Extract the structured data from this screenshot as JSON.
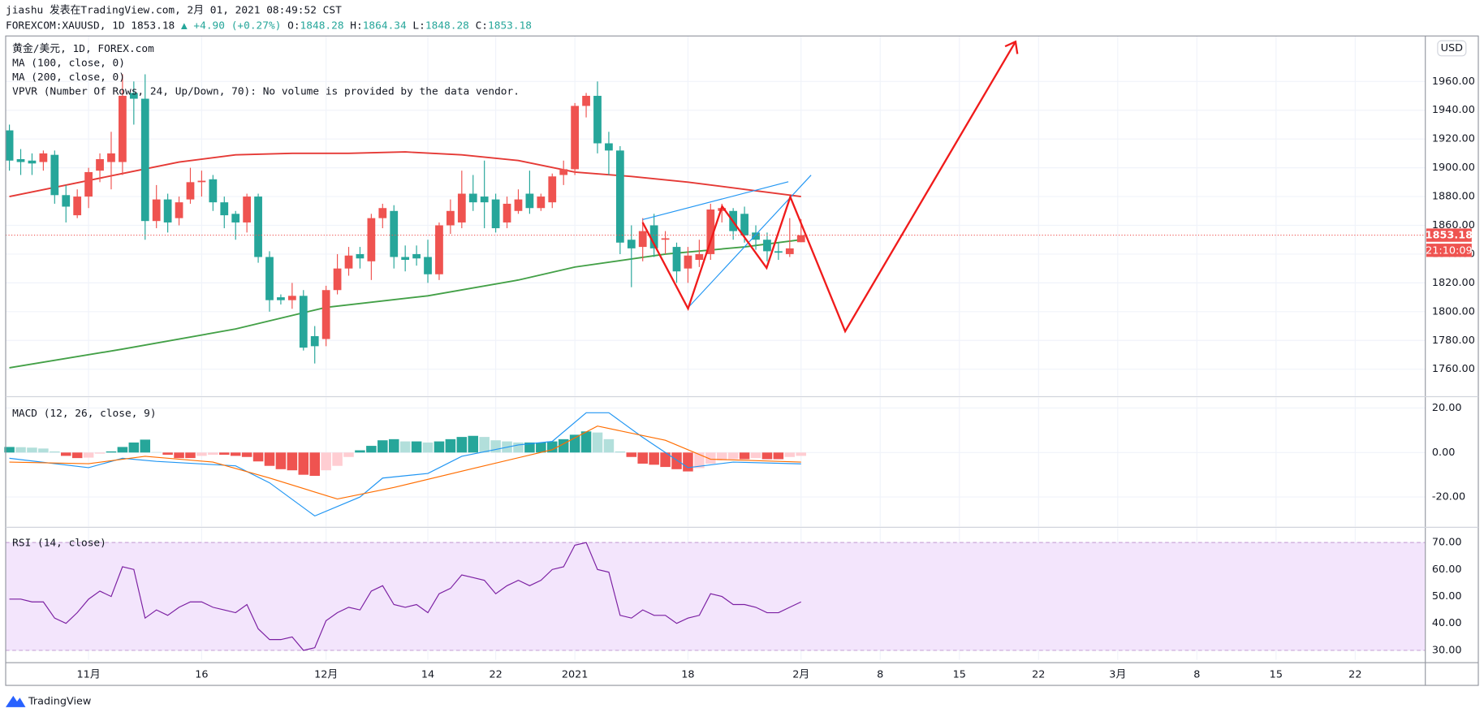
{
  "header": {
    "author_line": "jiashu 发表在TradingView.com, 2月 01, 2021 08:49:52 CST",
    "symbol": "FOREXCOM:XAUUSD, 1D",
    "change": "▲ +4.90 (+0.27%)",
    "ohlc_labels": [
      "O:",
      "H:",
      "L:",
      "C:"
    ],
    "brand": "TradingView"
  },
  "chart_data": [
    {
      "type": "candlestick",
      "title": "黄金/美元, 1D, FOREX.com",
      "currency": "USD",
      "countdown": "21:10:09",
      "notes": [
        "VPVR (Number Of Rows, 24, Up/Down, 70): No volume is provided by the data vendor."
      ],
      "up_color": "#ef5350",
      "down_color": "#26a69a",
      "grid": true,
      "xlim": [
        -0.33,
        125.2
      ],
      "xticks": [
        {
          "value": 7,
          "label": "11月"
        },
        {
          "value": 17,
          "label": "16"
        },
        {
          "value": 28,
          "label": "12月"
        },
        {
          "value": 37,
          "label": "14"
        },
        {
          "value": 43,
          "label": "22"
        },
        {
          "value": 50,
          "label": "2021"
        },
        {
          "value": 60,
          "label": "18"
        },
        {
          "value": 70,
          "label": "2月"
        },
        {
          "value": 77,
          "label": "8"
        },
        {
          "value": 84,
          "label": "15"
        },
        {
          "value": 91,
          "label": "22"
        },
        {
          "value": 98,
          "label": "3月"
        },
        {
          "value": 105,
          "label": "8"
        },
        {
          "value": 112,
          "label": "15"
        },
        {
          "value": 119,
          "label": "22"
        }
      ],
      "ylim": [
        1741.6,
        1991.6
      ],
      "yticks": [
        {
          "value": 1760,
          "label": "1760.00"
        },
        {
          "value": 1780,
          "label": "1780.00"
        },
        {
          "value": 1800,
          "label": "1800.00"
        },
        {
          "value": 1820,
          "label": "1820.00"
        },
        {
          "value": 1840,
          "label": "1840.00"
        },
        {
          "value": 1860,
          "label": "1860.00"
        },
        {
          "value": 1880,
          "label": "1880.00"
        },
        {
          "value": 1900,
          "label": "1900.00"
        },
        {
          "value": 1920,
          "label": "1920.00"
        },
        {
          "value": 1940,
          "label": "1940.00"
        },
        {
          "value": 1960,
          "label": "1960.00"
        }
      ],
      "open": [
        1926,
        1906,
        1905,
        1904,
        1909,
        1881,
        1867,
        1880,
        1898,
        1904,
        1904,
        1952,
        1948,
        1863,
        1878,
        1865,
        1878,
        1890,
        1892,
        1876,
        1868,
        1862,
        1880,
        1838,
        1810,
        1808,
        1811,
        1783,
        1781,
        1815,
        1830,
        1840,
        1835,
        1865,
        1870,
        1838,
        1840,
        1838,
        1826,
        1860,
        1862,
        1882,
        1880,
        1878,
        1862,
        1870,
        1882,
        1872,
        1876,
        1895,
        1899,
        1943,
        1950,
        1917,
        1912,
        1850,
        1845,
        1860,
        1850,
        1845,
        1830,
        1836,
        1840,
        1870,
        1870,
        1868,
        1855,
        1850,
        1842,
        1840,
        1848.28
      ],
      "high": [
        1930,
        1913,
        1910,
        1912,
        1912,
        1888,
        1885,
        1900,
        1910,
        1925,
        1965,
        1960,
        1965,
        1888,
        1882,
        1880,
        1900,
        1898,
        1895,
        1880,
        1870,
        1882,
        1882,
        1842,
        1812,
        1820,
        1815,
        1790,
        1818,
        1840,
        1845,
        1845,
        1868,
        1875,
        1874,
        1846,
        1846,
        1850,
        1862,
        1878,
        1898,
        1895,
        1905,
        1882,
        1880,
        1885,
        1898,
        1882,
        1896,
        1905,
        1945,
        1952,
        1960,
        1925,
        1915,
        1860,
        1865,
        1868,
        1856,
        1848,
        1845,
        1850,
        1875,
        1875,
        1872,
        1873,
        1860,
        1855,
        1848,
        1865,
        1864.34
      ],
      "low": [
        1898,
        1895,
        1895,
        1898,
        1875,
        1862,
        1865,
        1872,
        1890,
        1885,
        1895,
        1930,
        1850,
        1858,
        1855,
        1860,
        1875,
        1880,
        1870,
        1858,
        1850,
        1855,
        1834,
        1800,
        1805,
        1802,
        1773,
        1764,
        1776,
        1812,
        1825,
        1830,
        1822,
        1858,
        1830,
        1828,
        1832,
        1820,
        1822,
        1854,
        1858,
        1870,
        1858,
        1855,
        1858,
        1868,
        1868,
        1870,
        1872,
        1888,
        1895,
        1935,
        1910,
        1895,
        1840,
        1817,
        1835,
        1838,
        1840,
        1820,
        1820,
        1831,
        1836,
        1862,
        1850,
        1848,
        1843,
        1835,
        1836,
        1838,
        1848.28
      ],
      "close": [
        1905,
        1904,
        1903,
        1910,
        1881,
        1873,
        1880,
        1897,
        1906,
        1910,
        1950,
        1948,
        1863,
        1878,
        1862,
        1876,
        1890,
        1891,
        1876,
        1867,
        1862,
        1880,
        1838,
        1808,
        1808,
        1811,
        1775,
        1776,
        1815,
        1830,
        1839,
        1837,
        1865,
        1872,
        1838,
        1836,
        1837,
        1826,
        1860,
        1870,
        1882,
        1876,
        1876,
        1858,
        1875,
        1878,
        1872,
        1880,
        1894,
        1899,
        1943,
        1950,
        1917,
        1912,
        1848,
        1844,
        1856,
        1844,
        1851,
        1828,
        1839,
        1840,
        1871,
        1872,
        1856,
        1853,
        1850,
        1842,
        1841,
        1844,
        1853.18
      ],
      "series": [
        {
          "name": "MA (100, close, 0)",
          "color": "#e53935",
          "x": [
            0,
            5,
            10,
            15,
            20,
            25,
            30,
            35,
            40,
            45,
            50,
            55,
            60,
            65,
            70
          ],
          "values": [
            1880,
            1888,
            1896,
            1904,
            1909,
            1910,
            1910,
            1911,
            1909,
            1905,
            1897,
            1894,
            1890,
            1885,
            1880
          ]
        },
        {
          "name": "MA (200, close, 0)",
          "color": "#43a047",
          "x": [
            0,
            10,
            20,
            28,
            37,
            45,
            50,
            58,
            65,
            70
          ],
          "values": [
            1761,
            1774,
            1788,
            1803,
            1811,
            1822,
            1831,
            1840,
            1845,
            1850
          ]
        }
      ]
    },
    {
      "type": "macd",
      "title": "MACD (12, 26, close, 9)",
      "ylim": [
        -33.2,
        24.7
      ],
      "yticks": [
        {
          "value": 20,
          "label": "20.00"
        },
        {
          "value": 0,
          "label": "0.00"
        },
        {
          "value": -20,
          "label": "-20.00"
        }
      ],
      "histogram_colors": [
        "#26a69a",
        "#b2dfdb",
        "#ef5350",
        "#ffcdd2"
      ],
      "histogram": [
        2.5,
        2.4,
        2.2,
        1.8,
        0.5,
        -1.5,
        -2.5,
        -2.3,
        -0.5,
        0.5,
        2.5,
        4.5,
        5.8,
        0.2,
        -1,
        -2.5,
        -2.5,
        -1.5,
        -1,
        -1,
        -1.5,
        -2,
        -4,
        -6,
        -7.5,
        -8,
        -10,
        -10.5,
        -8,
        -6,
        -2,
        1,
        3,
        5.5,
        6,
        5,
        5,
        4.5,
        5,
        6,
        7,
        7.5,
        7,
        5.5,
        5,
        4.5,
        4.5,
        4.5,
        5,
        6,
        8,
        9.5,
        9,
        6,
        0.5,
        -2,
        -5,
        -5.5,
        -6.5,
        -7.5,
        -8.5,
        -7,
        -5,
        -3.5,
        -3,
        -3,
        -2.5,
        -3,
        -3,
        -2,
        -1.5
      ],
      "series": [
        {
          "color": "#2196f3",
          "x": [
            0,
            7,
            10,
            13,
            20,
            23,
            27,
            31,
            33,
            37,
            40,
            45,
            48,
            51,
            53,
            56,
            60,
            64,
            70
          ],
          "values": [
            -2.6,
            -6.8,
            -2.6,
            -4,
            -6,
            -13.6,
            -28.5,
            -20,
            -11.5,
            -9.4,
            -1.7,
            3.4,
            5,
            17.9,
            17.9,
            6.8,
            -6.8,
            -4.3,
            -5.1
          ]
        },
        {
          "color": "#ff6d00",
          "x": [
            0,
            7,
            12,
            18,
            23,
            29,
            34,
            41,
            48,
            52,
            58,
            62,
            70
          ],
          "values": [
            -4.3,
            -5,
            -1.7,
            -4.3,
            -11.5,
            -20.9,
            -15.7,
            -7.2,
            1.3,
            11.9,
            5.5,
            -3,
            -4.3
          ]
        }
      ]
    },
    {
      "type": "rsi",
      "title": "RSI (14, close)",
      "ylim": [
        26.5,
        75.3
      ],
      "yticks": [
        {
          "value": 30,
          "label": "30.00"
        },
        {
          "value": 40,
          "label": "40.00"
        },
        {
          "value": 50,
          "label": "50.00"
        },
        {
          "value": 60,
          "label": "60.00"
        },
        {
          "value": 70,
          "label": "70.00"
        }
      ],
      "band": [
        30,
        70
      ],
      "band_color": "#f3e5fc",
      "series": [
        {
          "color": "#7b1fa2",
          "values": [
            49,
            49,
            48,
            48,
            42,
            40,
            44,
            49,
            52,
            50,
            61,
            60,
            42,
            45,
            43,
            46,
            48,
            48,
            46,
            45,
            44,
            47,
            38,
            34,
            34,
            35,
            30,
            31,
            41,
            44,
            46,
            45,
            52,
            54,
            47,
            46,
            47,
            44,
            51,
            53,
            58,
            57,
            56,
            51,
            54,
            56,
            54,
            56,
            60,
            61,
            69,
            70,
            60,
            59,
            43,
            42,
            45,
            43,
            43,
            40,
            42,
            43,
            51,
            50,
            47,
            47,
            46,
            44,
            44,
            46,
            48
          ]
        }
      ]
    }
  ]
}
